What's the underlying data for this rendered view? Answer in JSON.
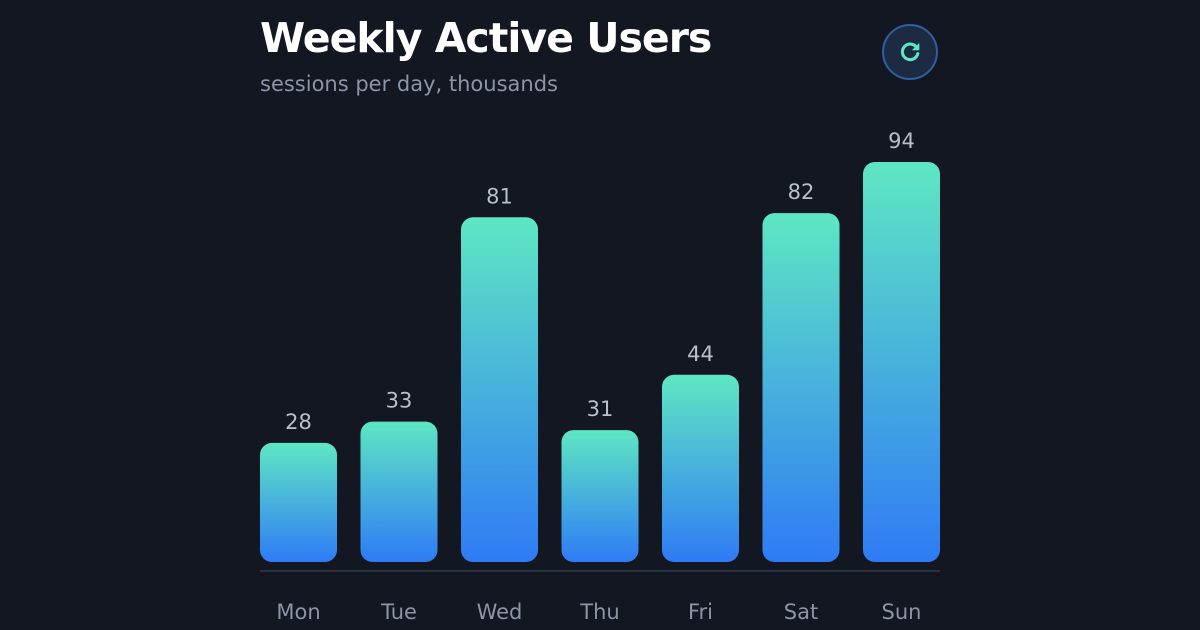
{
  "header": {
    "title": "Weekly Active Users",
    "subtitle": "sessions per day, thousands"
  },
  "refresh_button": {
    "icon": "refresh-icon",
    "color": "#5ee7c3"
  },
  "colors": {
    "bar_top": "#5ee7c3",
    "bar_bottom": "#2f7bf5",
    "value_label": "#b8c0cc",
    "category_label": "#8b95a7",
    "baseline": "#2a3344"
  },
  "chart_data": {
    "type": "bar",
    "title": "Weekly Active Users",
    "subtitle": "sessions per day, thousands",
    "xlabel": "",
    "ylabel": "",
    "categories": [
      "Mon",
      "Tue",
      "Wed",
      "Thu",
      "Fri",
      "Sat",
      "Sun"
    ],
    "values": [
      28,
      33,
      81,
      31,
      44,
      82,
      94
    ],
    "ylim": [
      0,
      94
    ],
    "grid": false,
    "legend": "none"
  }
}
